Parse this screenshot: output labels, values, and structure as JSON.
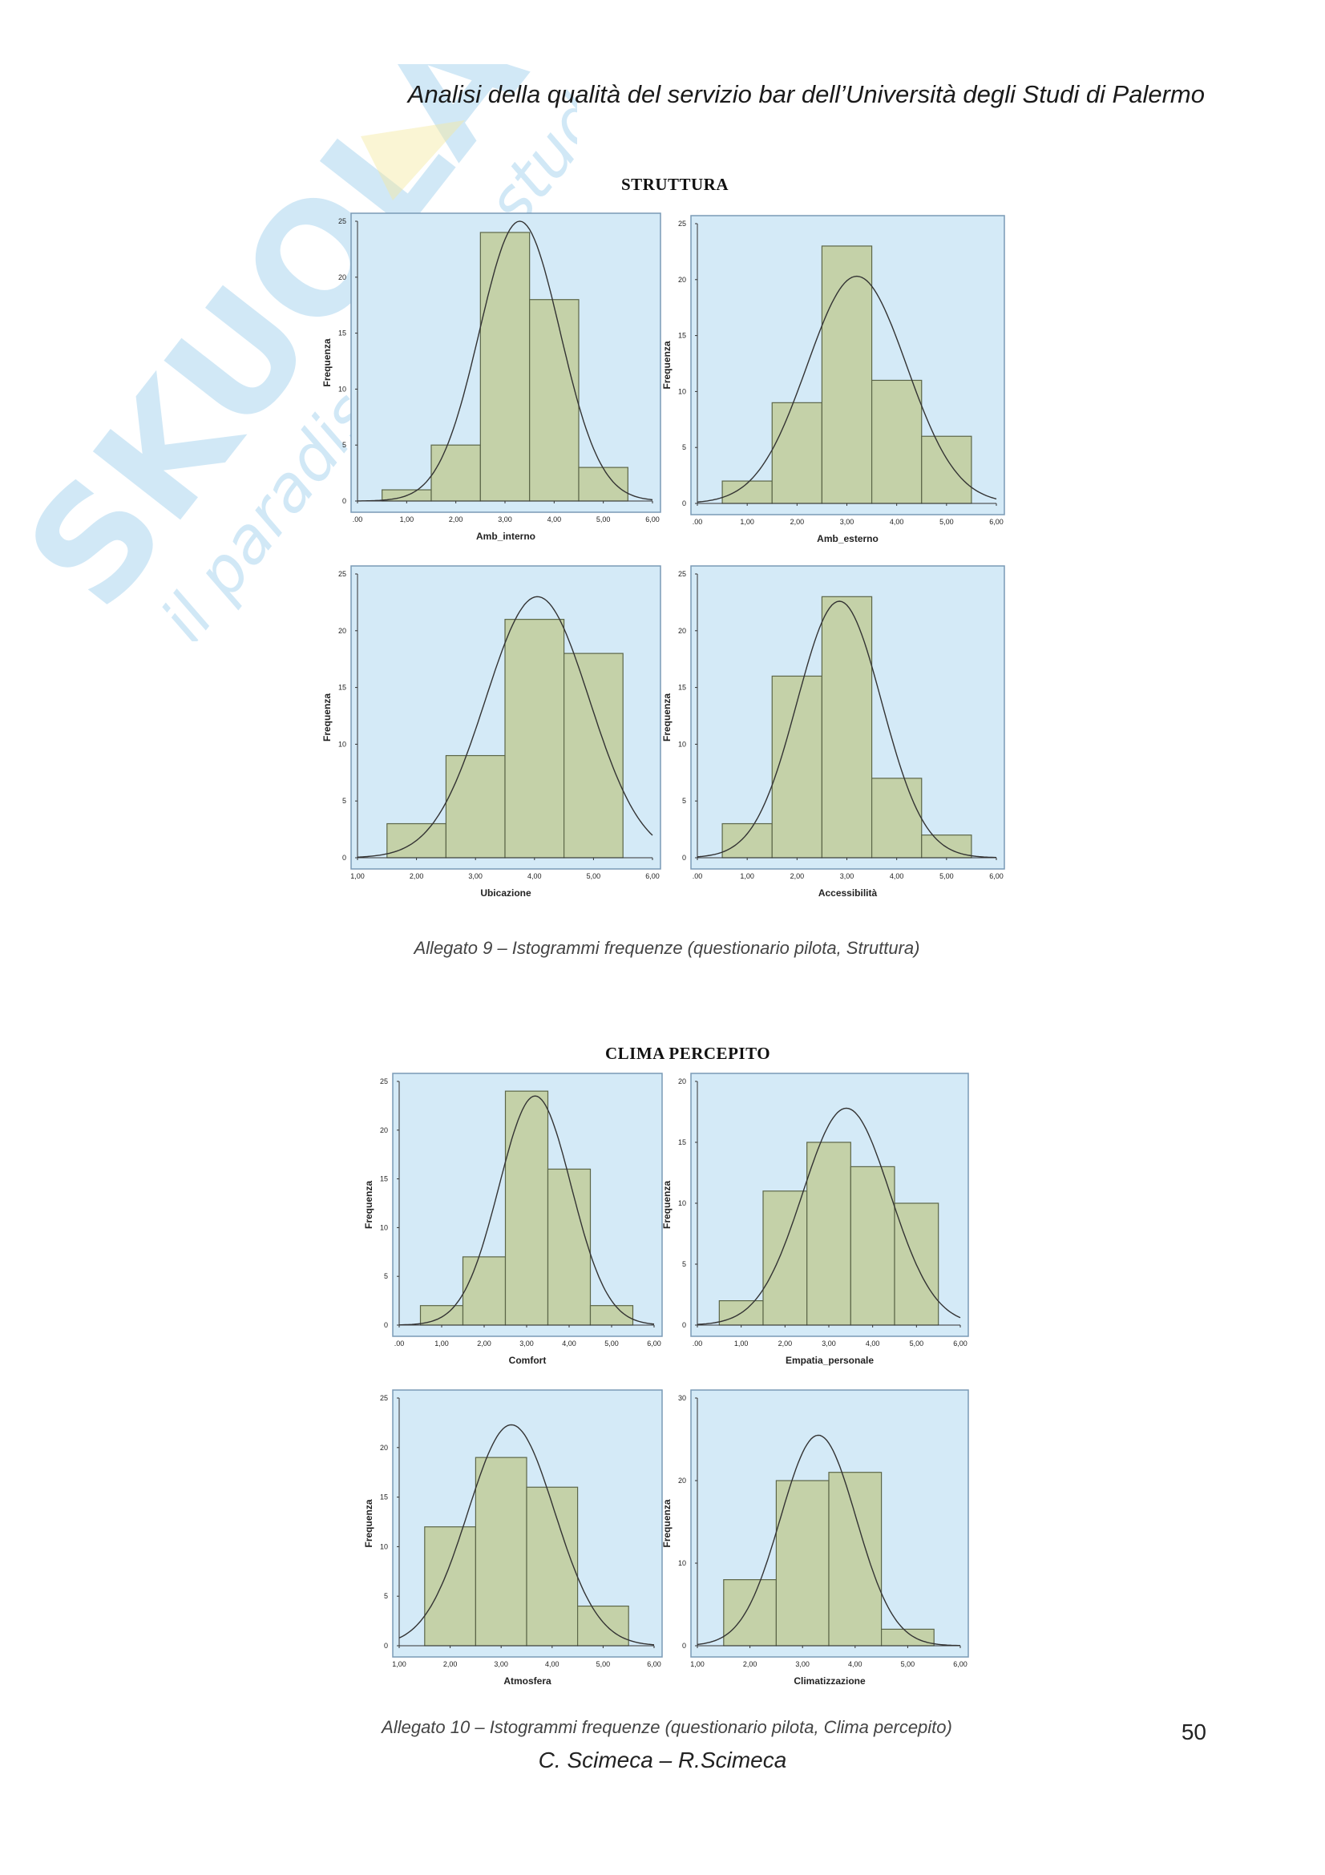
{
  "header": {
    "title": "Analisi della qualità del servizio bar dell’Università degli Studi di Palermo"
  },
  "watermark": {
    "brand": "SKUOLA.net",
    "tagline": "il paradiso dello studente"
  },
  "sections": [
    {
      "title": "STRUTTURA",
      "caption": "Allegato 9 – Istogrammi frequenze (questionario pilota, Struttura)"
    },
    {
      "title": "CLIMA PERCEPITO",
      "caption": "Allegato 10 – Istogrammi frequenze (questionario pilota, Clima percepito)"
    }
  ],
  "footer": {
    "page_number": "50",
    "authors": "C. Scimeca – R.Scimeca"
  },
  "colors": {
    "plot_bg": "#d4eaf7",
    "bar_fill": "#c4d1a8",
    "bar_stroke": "#5c6648",
    "curve": "#333333",
    "frame": "#7a9ab5"
  },
  "chart_data": [
    {
      "type": "bar",
      "xlabel": "Amb_interno",
      "ylabel": "Frequenza",
      "xticks": [
        ".00",
        "1,00",
        "2,00",
        "3,00",
        "4,00",
        "5,00",
        "6,00"
      ],
      "xlim": [
        0,
        6
      ],
      "yticks": [
        "0",
        "5",
        "10",
        "15",
        "20",
        "25"
      ],
      "ylim": [
        0,
        25
      ],
      "bins": [
        [
          0.5,
          1.5
        ],
        [
          1.5,
          2.5
        ],
        [
          2.5,
          3.5
        ],
        [
          3.5,
          4.5
        ],
        [
          4.5,
          5.5
        ]
      ],
      "values": [
        1,
        5,
        24,
        18,
        3
      ],
      "curve": {
        "mean": 3.3,
        "sd": 0.82,
        "peak": 25
      }
    },
    {
      "type": "bar",
      "xlabel": "Amb_esterno",
      "ylabel": "Frequenza",
      "xticks": [
        ".00",
        "1,00",
        "2,00",
        "3,00",
        "4,00",
        "5,00",
        "6,00"
      ],
      "xlim": [
        0,
        6
      ],
      "yticks": [
        "0",
        "5",
        "10",
        "15",
        "20",
        "25"
      ],
      "ylim": [
        0,
        25
      ],
      "bins": [
        [
          0.5,
          1.5
        ],
        [
          1.5,
          2.5
        ],
        [
          2.5,
          3.5
        ],
        [
          3.5,
          4.5
        ],
        [
          4.5,
          5.5
        ]
      ],
      "values": [
        2,
        9,
        23,
        11,
        6
      ],
      "curve": {
        "mean": 3.2,
        "sd": 1.0,
        "peak": 20.3
      }
    },
    {
      "type": "bar",
      "xlabel": "Ubicazione",
      "ylabel": "Frequenza",
      "xticks": [
        "1,00",
        "2,00",
        "3,00",
        "4,00",
        "5,00",
        "6,00"
      ],
      "xlim": [
        1,
        6
      ],
      "yticks": [
        "0",
        "5",
        "10",
        "15",
        "20",
        "25"
      ],
      "ylim": [
        0,
        25
      ],
      "bins": [
        [
          1.5,
          2.5
        ],
        [
          2.5,
          3.5
        ],
        [
          3.5,
          4.5
        ],
        [
          4.5,
          5.5
        ]
      ],
      "values": [
        3,
        9,
        21,
        18
      ],
      "curve": {
        "mean": 4.05,
        "sd": 0.88,
        "peak": 23
      }
    },
    {
      "type": "bar",
      "xlabel": "Accessibilità",
      "ylabel": "Frequenza",
      "xticks": [
        ".00",
        "1,00",
        "2,00",
        "3,00",
        "4,00",
        "5,00",
        "6,00"
      ],
      "xlim": [
        0,
        6
      ],
      "yticks": [
        "0",
        "5",
        "10",
        "15",
        "20",
        "25"
      ],
      "ylim": [
        0,
        25
      ],
      "bins": [
        [
          0.5,
          1.5
        ],
        [
          1.5,
          2.5
        ],
        [
          2.5,
          3.5
        ],
        [
          3.5,
          4.5
        ],
        [
          4.5,
          5.5
        ]
      ],
      "values": [
        3,
        16,
        23,
        7,
        2
      ],
      "curve": {
        "mean": 2.85,
        "sd": 0.85,
        "peak": 22.6
      }
    },
    {
      "type": "bar",
      "xlabel": "Comfort",
      "ylabel": "Frequenza",
      "xticks": [
        ".00",
        "1,00",
        "2,00",
        "3,00",
        "4,00",
        "5,00",
        "6,00"
      ],
      "xlim": [
        0,
        6
      ],
      "yticks": [
        "0",
        "5",
        "10",
        "15",
        "20",
        "25"
      ],
      "ylim": [
        0,
        25
      ],
      "bins": [
        [
          0.5,
          1.5
        ],
        [
          1.5,
          2.5
        ],
        [
          2.5,
          3.5
        ],
        [
          3.5,
          4.5
        ],
        [
          4.5,
          5.5
        ]
      ],
      "values": [
        2,
        7,
        24,
        16,
        2
      ],
      "curve": {
        "mean": 3.2,
        "sd": 0.85,
        "peak": 23.5
      }
    },
    {
      "type": "bar",
      "xlabel": "Empatia_personale",
      "ylabel": "Frequenza",
      "xticks": [
        ".00",
        "1,00",
        "2,00",
        "3,00",
        "4,00",
        "5,00",
        "6,00"
      ],
      "xlim": [
        0,
        6
      ],
      "yticks": [
        "0",
        "5",
        "10",
        "15",
        "20"
      ],
      "ylim": [
        0,
        20
      ],
      "bins": [
        [
          0.5,
          1.5
        ],
        [
          1.5,
          2.5
        ],
        [
          2.5,
          3.5
        ],
        [
          3.5,
          4.5
        ],
        [
          4.5,
          5.5
        ]
      ],
      "values": [
        2,
        11,
        15,
        13,
        10
      ],
      "curve": {
        "mean": 3.4,
        "sd": 1.0,
        "peak": 17.8
      }
    },
    {
      "type": "bar",
      "xlabel": "Atmosfera",
      "ylabel": "Frequenza",
      "xticks": [
        "1,00",
        "2,00",
        "3,00",
        "4,00",
        "5,00",
        "6,00"
      ],
      "xlim": [
        1,
        6
      ],
      "yticks": [
        "0",
        "5",
        "10",
        "15",
        "20",
        "25"
      ],
      "ylim": [
        0,
        25
      ],
      "bins": [
        [
          1.5,
          2.5
        ],
        [
          2.5,
          3.5
        ],
        [
          3.5,
          4.5
        ],
        [
          4.5,
          5.5
        ]
      ],
      "values": [
        12,
        19,
        16,
        4
      ],
      "curve": {
        "mean": 3.2,
        "sd": 0.85,
        "peak": 22.3
      }
    },
    {
      "type": "bar",
      "xlabel": "Climatizzazione",
      "ylabel": "Frequenza",
      "xticks": [
        "1,00",
        "2,00",
        "3,00",
        "4,00",
        "5,00",
        "6,00"
      ],
      "xlim": [
        1,
        6
      ],
      "yticks": [
        "0",
        "10",
        "20",
        "30"
      ],
      "ylim": [
        0,
        30
      ],
      "bins": [
        [
          1.5,
          2.5
        ],
        [
          2.5,
          3.5
        ],
        [
          3.5,
          4.5
        ],
        [
          4.5,
          5.5
        ]
      ],
      "values": [
        8,
        20,
        21,
        2
      ],
      "curve": {
        "mean": 3.3,
        "sd": 0.72,
        "peak": 25.5
      }
    }
  ]
}
